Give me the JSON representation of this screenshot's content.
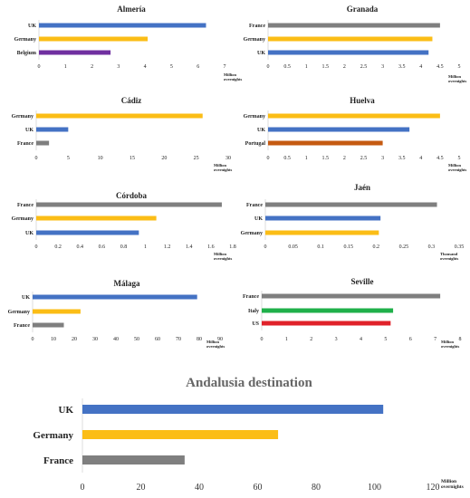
{
  "chart_data": [
    {
      "type": "bar",
      "title": "Almería",
      "categories": [
        "UK",
        "Germany",
        "Belgium"
      ],
      "values": [
        6.3,
        4.1,
        2.7
      ],
      "colors": [
        "#4472c4",
        "#fbbd16",
        "#7030a0"
      ],
      "xlim": [
        0,
        7
      ],
      "ticks": [
        "0",
        "1",
        "2",
        "3",
        "4",
        "5",
        "6",
        "7"
      ],
      "unit": [
        "Million",
        "overnights"
      ]
    },
    {
      "type": "bar",
      "title": "Granada",
      "categories": [
        "France",
        "Germany",
        "UK"
      ],
      "values": [
        4.5,
        4.3,
        4.2
      ],
      "colors": [
        "#7f7f7f",
        "#fbbd16",
        "#4472c4"
      ],
      "xlim": [
        0,
        5
      ],
      "ticks": [
        "0",
        "0.5",
        "1",
        "1.5",
        "2",
        "2.5",
        "3",
        "3.5",
        "4",
        "4.5",
        "5"
      ],
      "unit": [
        "Million",
        "overnights"
      ]
    },
    {
      "type": "bar",
      "title": "Cádiz",
      "categories": [
        "Germany",
        "UK",
        "France"
      ],
      "values": [
        26,
        5,
        2
      ],
      "colors": [
        "#fbbd16",
        "#4472c4",
        "#7f7f7f"
      ],
      "xlim": [
        0,
        30
      ],
      "ticks": [
        "0",
        "5",
        "10",
        "15",
        "20",
        "25",
        "30"
      ],
      "unit": [
        "Million",
        "overnights"
      ]
    },
    {
      "type": "bar",
      "title": "Huelva",
      "categories": [
        "Germany",
        "UK",
        "Portugal"
      ],
      "values": [
        4.5,
        3.7,
        3.0
      ],
      "colors": [
        "#fbbd16",
        "#4472c4",
        "#c55a11"
      ],
      "xlim": [
        0,
        5
      ],
      "ticks": [
        "0",
        "0.5",
        "1",
        "1.5",
        "2",
        "2.5",
        "3",
        "3.5",
        "4",
        "4.5",
        "5"
      ],
      "unit": [
        "Million",
        "overnights"
      ]
    },
    {
      "type": "bar",
      "title": "Córdoba",
      "categories": [
        "France",
        "Germany",
        "UK"
      ],
      "values": [
        1.7,
        1.1,
        0.94
      ],
      "colors": [
        "#7f7f7f",
        "#fbbd16",
        "#4472c4"
      ],
      "xlim": [
        0,
        1.8
      ],
      "ticks": [
        "0",
        "0.2",
        "0.4",
        "0.6",
        "0.8",
        "1",
        "1.2",
        "1.4",
        "1.6",
        "1.8"
      ],
      "unit": [
        "Million",
        "overnights"
      ]
    },
    {
      "type": "bar",
      "title": "Jaén",
      "categories": [
        "France",
        "UK",
        "Germany"
      ],
      "values": [
        0.31,
        0.208,
        0.205
      ],
      "colors": [
        "#7f7f7f",
        "#4472c4",
        "#fbbd16"
      ],
      "xlim": [
        0,
        0.35
      ],
      "ticks": [
        "0",
        "0.05",
        "0.1",
        "0.15",
        "0.2",
        "0.25",
        "0.3",
        "0.35"
      ],
      "unit": [
        "Thousand",
        "overnights"
      ]
    },
    {
      "type": "bar",
      "title": "Málaga",
      "categories": [
        "UK",
        "Germany",
        "France"
      ],
      "values": [
        79,
        23,
        15
      ],
      "colors": [
        "#4472c4",
        "#fbbd16",
        "#7f7f7f"
      ],
      "xlim": [
        0,
        90
      ],
      "ticks": [
        "0",
        "10",
        "20",
        "30",
        "40",
        "50",
        "60",
        "70",
        "80",
        "90"
      ],
      "unit": [
        "Million",
        "overnights"
      ]
    },
    {
      "type": "bar",
      "title": "Seville",
      "categories": [
        "France",
        "Italy",
        "US"
      ],
      "values": [
        7.2,
        5.3,
        5.2
      ],
      "colors": [
        "#7f7f7f",
        "#1fb04a",
        "#e0222a"
      ],
      "xlim": [
        0,
        8
      ],
      "ticks": [
        "0",
        "1",
        "2",
        "3",
        "4",
        "5",
        "6",
        "7",
        "8"
      ],
      "unit": [
        "Million",
        "overnights"
      ]
    },
    {
      "type": "bar",
      "title": "Andalusia destination",
      "categories": [
        "UK",
        "Germany",
        "France"
      ],
      "values": [
        103,
        67,
        35
      ],
      "colors": [
        "#4472c4",
        "#fbbd16",
        "#7f7f7f"
      ],
      "xlim": [
        0,
        120
      ],
      "ticks": [
        "0",
        "20",
        "40",
        "60",
        "80",
        "100",
        "120"
      ],
      "unit": [
        "Million",
        "overnights"
      ]
    }
  ]
}
